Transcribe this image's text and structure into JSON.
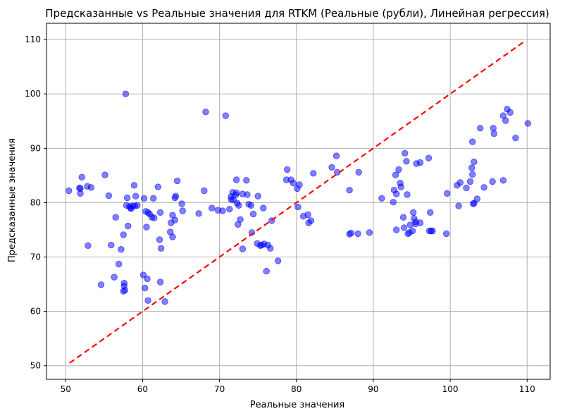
{
  "chart_data": {
    "type": "scatter",
    "title": "Предсказанные vs Реальные значения для RTKM (Реальные (рубли), Линейная регрессия)",
    "xlabel": "Реальные значения",
    "ylabel": "Предсказанные значения",
    "xlim": [
      47.5,
      113
    ],
    "ylim": [
      47.5,
      113
    ],
    "xticks": [
      50,
      60,
      70,
      80,
      90,
      100,
      110
    ],
    "yticks": [
      50,
      60,
      70,
      80,
      90,
      100,
      110
    ],
    "grid": true,
    "point_color": "#0000ff",
    "point_opacity": 0.5,
    "reference_line": {
      "from": [
        50.5,
        50.5
      ],
      "to": [
        109.8,
        109.8
      ],
      "color": "#ff0000",
      "style": "dashed"
    },
    "points": [
      [
        50.4,
        82.2
      ],
      [
        51.8,
        82.7
      ],
      [
        51.9,
        82.6
      ],
      [
        51.9,
        81.7
      ],
      [
        52.1,
        84.7
      ],
      [
        52.8,
        83
      ],
      [
        53.3,
        82.8
      ],
      [
        52.9,
        72.1
      ],
      [
        54.6,
        64.9
      ],
      [
        55.1,
        85.1
      ],
      [
        55.6,
        81.3
      ],
      [
        55.9,
        72.2
      ],
      [
        56.3,
        66.3
      ],
      [
        56.5,
        77.3
      ],
      [
        56.9,
        68.7
      ],
      [
        57.2,
        71.4
      ],
      [
        57.5,
        74.1
      ],
      [
        57.5,
        63.7
      ],
      [
        57.6,
        65.2
      ],
      [
        57.7,
        63.9
      ],
      [
        57.6,
        64.7
      ],
      [
        57.8,
        100
      ],
      [
        57.9,
        79.5
      ],
      [
        58,
        80.9
      ],
      [
        58.1,
        75.7
      ],
      [
        58.3,
        79.3
      ],
      [
        58.4,
        79.1
      ],
      [
        58.5,
        78.9
      ],
      [
        58.7,
        79.4
      ],
      [
        58.9,
        83.2
      ],
      [
        59.1,
        81.2
      ],
      [
        59.3,
        79.5
      ],
      [
        59.0,
        79.4
      ],
      [
        60.1,
        66.7
      ],
      [
        60.3,
        64.3
      ],
      [
        60.2,
        80.8
      ],
      [
        60.4,
        78.4
      ],
      [
        60.5,
        75.5
      ],
      [
        60.6,
        66
      ],
      [
        60.7,
        78.2
      ],
      [
        60.7,
        62
      ],
      [
        60.9,
        77.9
      ],
      [
        61.2,
        77.3
      ],
      [
        61.5,
        77.2
      ],
      [
        61.4,
        80.8
      ],
      [
        62,
        82.9
      ],
      [
        62.2,
        73.2
      ],
      [
        62.3,
        78.2
      ],
      [
        62.4,
        71.6
      ],
      [
        62.3,
        65.4
      ],
      [
        62.9,
        61.8
      ],
      [
        63.6,
        74.6
      ],
      [
        63.7,
        76.3
      ],
      [
        63.9,
        73.7
      ],
      [
        63.9,
        77.7
      ],
      [
        64.2,
        76.8
      ],
      [
        64.2,
        80.9
      ],
      [
        64.3,
        81.2
      ],
      [
        64.5,
        84
      ],
      [
        65.1,
        79.8
      ],
      [
        65.2,
        78.5
      ],
      [
        67.3,
        78
      ],
      [
        68.0,
        82.2
      ],
      [
        68.2,
        96.7
      ],
      [
        69.0,
        79
      ],
      [
        69.8,
        78.6
      ],
      [
        70.4,
        78.5
      ],
      [
        70.8,
        96
      ],
      [
        71.3,
        78.8
      ],
      [
        71.5,
        81.1
      ],
      [
        71.5,
        80.6
      ],
      [
        71.7,
        81.9
      ],
      [
        71.8,
        80.5
      ],
      [
        72.1,
        81.4
      ],
      [
        72.2,
        81.8
      ],
      [
        72.2,
        84.2
      ],
      [
        72.3,
        79.9
      ],
      [
        72.4,
        76
      ],
      [
        72.5,
        79.5
      ],
      [
        72.7,
        76.9
      ],
      [
        73.0,
        71.5
      ],
      [
        73.0,
        81.6
      ],
      [
        73.5,
        84.1
      ],
      [
        73.6,
        81.5
      ],
      [
        73.8,
        79.7
      ],
      [
        74.1,
        79.5
      ],
      [
        74.2,
        74.5
      ],
      [
        74.4,
        77.9
      ],
      [
        74.9,
        72.5
      ],
      [
        75.0,
        81.2
      ],
      [
        75.3,
        72.1
      ],
      [
        75.5,
        72.2
      ],
      [
        75.7,
        79
      ],
      [
        75.8,
        72.4
      ],
      [
        76.1,
        67.4
      ],
      [
        76.3,
        72.2
      ],
      [
        76.6,
        71.6
      ],
      [
        76.8,
        76.7
      ],
      [
        77.6,
        69.3
      ],
      [
        78.7,
        84.2
      ],
      [
        78.8,
        86.1
      ],
      [
        79.3,
        84.2
      ],
      [
        79.6,
        83.6
      ],
      [
        80.1,
        82.6
      ],
      [
        80.4,
        83.3
      ],
      [
        80.2,
        79.2
      ],
      [
        80.9,
        77.5
      ],
      [
        81.5,
        77.8
      ],
      [
        81.6,
        76.3
      ],
      [
        81.9,
        76.7
      ],
      [
        82.2,
        85.4
      ],
      [
        84.6,
        86.5
      ],
      [
        85.2,
        88.6
      ],
      [
        85.3,
        85.6
      ],
      [
        86.9,
        74.2
      ],
      [
        86.9,
        82.3
      ],
      [
        87.1,
        74.4
      ],
      [
        88.0,
        74.3
      ],
      [
        88.1,
        85.6
      ],
      [
        89.5,
        74.5
      ],
      [
        91.1,
        80.8
      ],
      [
        92.6,
        80.1
      ],
      [
        92.7,
        82.3
      ],
      [
        92.9,
        85.1
      ],
      [
        93.0,
        75
      ],
      [
        93.0,
        81.6
      ],
      [
        93.3,
        86.1
      ],
      [
        93.5,
        83.6
      ],
      [
        93.6,
        82.9
      ],
      [
        93.9,
        77.3
      ],
      [
        94.0,
        75.4
      ],
      [
        94.1,
        89.1
      ],
      [
        94.3,
        87.6
      ],
      [
        94.4,
        81.5
      ],
      [
        94.5,
        74.3
      ],
      [
        94.7,
        74.5
      ],
      [
        94.8,
        75.9
      ],
      [
        95.1,
        74.8
      ],
      [
        95.2,
        78.2
      ],
      [
        95.3,
        77.1
      ],
      [
        95.5,
        76.1
      ],
      [
        95.5,
        76.5
      ],
      [
        95.6,
        87.2
      ],
      [
        96.1,
        87.4
      ],
      [
        96.1,
        76.3
      ],
      [
        97.2,
        88.2
      ],
      [
        97.3,
        74.8
      ],
      [
        97.4,
        78.2
      ],
      [
        97.5,
        74.8
      ],
      [
        97.7,
        74.8
      ],
      [
        99.5,
        74.3
      ],
      [
        99.6,
        81.7
      ],
      [
        100.9,
        83.2
      ],
      [
        101.1,
        79.4
      ],
      [
        101.3,
        83.7
      ],
      [
        102.1,
        82.7
      ],
      [
        102.6,
        83.9
      ],
      [
        102.8,
        86.4
      ],
      [
        102.9,
        85.2
      ],
      [
        102.9,
        91.2
      ],
      [
        103.0,
        79.8
      ],
      [
        103.1,
        87.5
      ],
      [
        103.1,
        79.9
      ],
      [
        103.5,
        80.7
      ],
      [
        103.9,
        93.7
      ],
      [
        104.4,
        82.8
      ],
      [
        105.5,
        83.9
      ],
      [
        105.6,
        93.7
      ],
      [
        105.7,
        92.7
      ],
      [
        106.9,
        96
      ],
      [
        106.9,
        84.1
      ],
      [
        107.2,
        95.1
      ],
      [
        107.4,
        97.2
      ],
      [
        107.8,
        96.6
      ],
      [
        108.5,
        91.9
      ],
      [
        110.1,
        94.6
      ]
    ]
  }
}
